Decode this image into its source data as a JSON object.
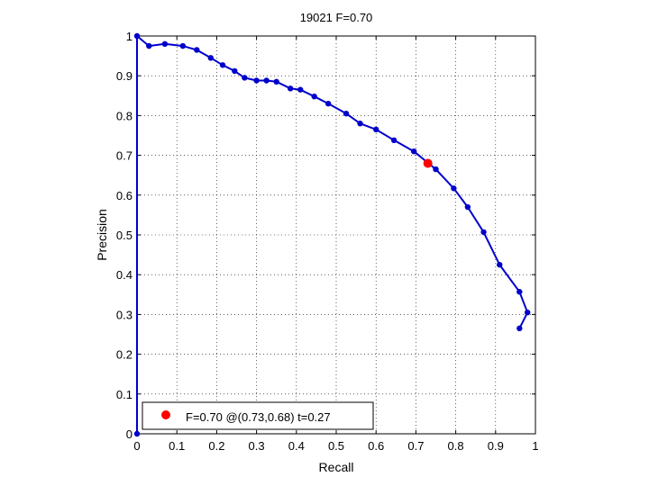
{
  "chart_data": {
    "type": "line",
    "title": "19021 F=0.70",
    "xlabel": "Recall",
    "ylabel": "Precision",
    "xlim": [
      0,
      1
    ],
    "ylim": [
      0,
      1
    ],
    "grid": true,
    "x_ticks": [
      "0",
      "0.1",
      "0.2",
      "0.3",
      "0.4",
      "0.5",
      "0.6",
      "0.7",
      "0.8",
      "0.9",
      "1"
    ],
    "y_ticks": [
      "0",
      "0.1",
      "0.2",
      "0.3",
      "0.4",
      "0.5",
      "0.6",
      "0.7",
      "0.8",
      "0.9",
      "1"
    ],
    "series": [
      {
        "color": "#0000cc",
        "points": [
          [
            0.0,
            0.0
          ],
          [
            0.0,
            1.0
          ],
          [
            0.03,
            0.975
          ],
          [
            0.07,
            0.98
          ],
          [
            0.115,
            0.975
          ],
          [
            0.15,
            0.965
          ],
          [
            0.185,
            0.945
          ],
          [
            0.215,
            0.927
          ],
          [
            0.245,
            0.912
          ],
          [
            0.27,
            0.895
          ],
          [
            0.3,
            0.888
          ],
          [
            0.325,
            0.888
          ],
          [
            0.35,
            0.885
          ],
          [
            0.385,
            0.868
          ],
          [
            0.41,
            0.865
          ],
          [
            0.445,
            0.848
          ],
          [
            0.48,
            0.83
          ],
          [
            0.525,
            0.805
          ],
          [
            0.56,
            0.78
          ],
          [
            0.6,
            0.765
          ],
          [
            0.645,
            0.738
          ],
          [
            0.695,
            0.71
          ],
          [
            0.75,
            0.665
          ],
          [
            0.795,
            0.617
          ],
          [
            0.83,
            0.57
          ],
          [
            0.87,
            0.507
          ],
          [
            0.91,
            0.425
          ],
          [
            0.96,
            0.357
          ],
          [
            0.98,
            0.305
          ],
          [
            0.96,
            0.265
          ]
        ]
      }
    ],
    "highlight_point": {
      "x": 0.73,
      "y": 0.68,
      "color": "#ff0000"
    },
    "legend": {
      "placement": "bottom-left",
      "label": "F=0.70 @(0.73,0.68) t=0.27"
    }
  }
}
